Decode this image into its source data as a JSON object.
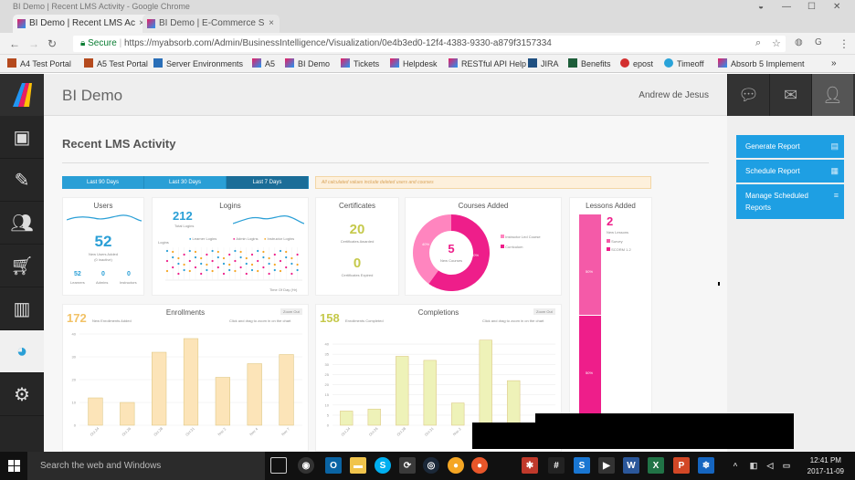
{
  "window": {
    "title": "BI Demo | Recent LMS Activity - Google Chrome"
  },
  "tabs": [
    {
      "label": "BI Demo | Recent LMS Ac"
    },
    {
      "label": "BI Demo | E-Commerce S"
    }
  ],
  "addressbar": {
    "secure": "Secure",
    "url": "https://myabsorb.com/Admin/BusinessIntelligence/Visualization/0e4b3ed0-12f4-4383-9330-a879f3157334"
  },
  "bookmarks": [
    {
      "label": "A4 Test Portal"
    },
    {
      "label": "A5 Test Portal"
    },
    {
      "label": "Server Environments"
    },
    {
      "label": "A5"
    },
    {
      "label": "BI Demo"
    },
    {
      "label": "Tickets"
    },
    {
      "label": "Helpdesk"
    },
    {
      "label": "RESTful API Help"
    },
    {
      "label": "JIRA"
    },
    {
      "label": "Benefits"
    },
    {
      "label": "epost"
    },
    {
      "label": "Timeoff"
    },
    {
      "label": "Absorb 5 Implement"
    }
  ],
  "header": {
    "app_title": "BI Demo",
    "user_name": "Andrew de Jesus"
  },
  "page": {
    "title": "Recent LMS Activity"
  },
  "date_range": {
    "options": [
      "Last 90 Days",
      "Last 30 Days",
      "Last 7 Days"
    ],
    "selected": "Last 7 Days"
  },
  "notice": "All calculated values include deleted users and courses",
  "cards": {
    "users": {
      "title": "Users",
      "value": "52",
      "sub": "New Users Added",
      "sub2": "(0 inactive)",
      "stats": [
        {
          "v": "52",
          "l": "Learners"
        },
        {
          "v": "0",
          "l": "Admins"
        },
        {
          "v": "0",
          "l": "Instructors"
        }
      ]
    },
    "logins": {
      "title": "Logins",
      "value": "212",
      "sub": "Total Logins",
      "legend": [
        "Learner Logins",
        "Admin Logins",
        "Instructor Logins"
      ],
      "xlabel": "Time Of Day (Hr)",
      "ylabel": "Logins"
    },
    "certificates": {
      "title": "Certificates",
      "value1": "20",
      "label1": "Certificates Awarded",
      "value2": "0",
      "label2": "Certificates Expired"
    },
    "courses": {
      "title": "Courses Added",
      "value": "5",
      "sub": "New Courses",
      "legend": [
        "Instructor Led Course",
        "Curriculum"
      ],
      "pct1": "40%",
      "pct2": "60%"
    },
    "lessons": {
      "title": "Lessons Added",
      "value": "2",
      "sub": "New Lessons",
      "legend": [
        "Survey",
        "SCORM 1.2"
      ],
      "pct1": "50%",
      "pct2": "50%"
    },
    "enrollments": {
      "title": "Enrollments",
      "value": "172",
      "sub": "New Enrollments Added",
      "hint": "Click and drag to zoom in on the chart",
      "zoom": "Zoom Out"
    },
    "completions": {
      "title": "Completions",
      "value": "158",
      "sub": "Enrollments Completed",
      "hint": "Click and drag to zoom in on the chart",
      "zoom": "Zoom Out"
    }
  },
  "chart_data": [
    {
      "type": "bar",
      "title": "Enrollments",
      "categories": [
        "Oct 24",
        "Oct 26",
        "Oct 28",
        "Oct 31",
        "Nov 2",
        "Nov 4",
        "Nov 7"
      ],
      "values": [
        12,
        10,
        32,
        38,
        21,
        27,
        31
      ],
      "ylim": [
        0,
        40
      ],
      "yticks": [
        0,
        10,
        20,
        30,
        40
      ],
      "color": "#fce4b8"
    },
    {
      "type": "bar",
      "title": "Completions",
      "categories": [
        "Oct 24",
        "Oct 26",
        "Oct 28",
        "Oct 31",
        "Nov 2",
        "Nov 4",
        "Nov 7",
        "Nov 9"
      ],
      "values": [
        7,
        8,
        34,
        32,
        11,
        42,
        22,
        0
      ],
      "ylim": [
        0,
        45
      ],
      "yticks": [
        0,
        5,
        10,
        15,
        20,
        25,
        30,
        35,
        40
      ],
      "color": "#eef2b8"
    },
    {
      "type": "pie",
      "title": "Courses Added",
      "labels": [
        "Instructor Led Course",
        "Curriculum"
      ],
      "values": [
        40,
        60
      ],
      "colors": [
        "#ff85bf",
        "#ee1e8a"
      ]
    },
    {
      "type": "bar",
      "title": "Lessons Added",
      "labels": [
        "Survey",
        "SCORM 1.2"
      ],
      "values": [
        50,
        50
      ],
      "colors": [
        "#f45aa8",
        "#ee1e8a"
      ]
    }
  ],
  "actions": [
    {
      "label": "Generate Report"
    },
    {
      "label": "Schedule Report"
    },
    {
      "label": "Manage Scheduled Reports"
    }
  ],
  "taskbar": {
    "search_placeholder": "Search the web and Windows",
    "time": "12:41 PM",
    "date": "2017-11-09"
  }
}
